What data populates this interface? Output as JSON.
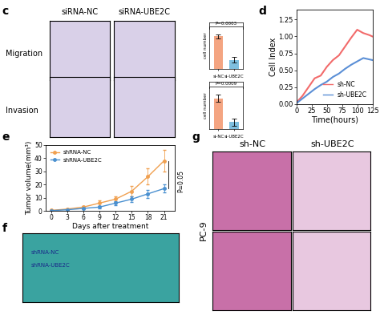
{
  "chart_data": [
    {
      "type": "bar",
      "ylabel": "cell number",
      "categories": [
        "si-NC",
        "si-UBE2C"
      ],
      "values": [
        140,
        40
      ],
      "errors": [
        8,
        12
      ],
      "colors": [
        "#f4a582",
        "#7fbfdf"
      ],
      "ylim": [
        0,
        200
      ],
      "tick_labels": "x",
      "annotation": "P=0.0003"
    },
    {
      "type": "bar",
      "ylabel": "cell number",
      "categories": [
        "si-NC",
        "si-UBE2C"
      ],
      "values": [
        130,
        30
      ],
      "errors": [
        15,
        15
      ],
      "colors": [
        "#f4a582",
        "#7fbfdf"
      ],
      "ylim": [
        0,
        200
      ],
      "tick_labels": "x",
      "annotation": "P=0.0009"
    },
    {
      "type": "line",
      "xlabel": "Time(hours)",
      "ylabel": "Cell Index",
      "x": [
        0,
        10,
        20,
        30,
        40,
        50,
        60,
        70,
        80,
        90,
        100,
        110,
        120,
        125
      ],
      "series": [
        {
          "name": "sh-NC",
          "color": "#f26b6b",
          "values": [
            0.02,
            0.12,
            0.25,
            0.38,
            0.42,
            0.55,
            0.65,
            0.72,
            0.85,
            0.98,
            1.1,
            1.05,
            1.02,
            1.0
          ]
        },
        {
          "name": "sh-UBE2C",
          "color": "#5b8fd6",
          "values": [
            0.01,
            0.08,
            0.15,
            0.22,
            0.28,
            0.33,
            0.4,
            0.45,
            0.52,
            0.58,
            0.63,
            0.68,
            0.66,
            0.65
          ]
        }
      ],
      "xlim": [
        0,
        125
      ],
      "xticks": [
        0,
        25,
        50,
        75,
        100,
        125
      ],
      "ylim": [
        0,
        1.4
      ],
      "yticks": [
        {
          "value": 0,
          "label": "0.00"
        },
        {
          "value": 0.25,
          "label": "0.25"
        },
        {
          "value": 0.5,
          "label": "0.50"
        },
        {
          "value": 0.75,
          "label": "0.75"
        },
        {
          "value": 1.0,
          "label": "1.00"
        },
        {
          "value": 1.25,
          "label": "1.25"
        }
      ],
      "legend": "lower right"
    },
    {
      "type": "line",
      "xlabel": "Days after treatment",
      "ylabel": "Tumor volume(mm³)",
      "x": [
        0,
        3,
        6,
        9,
        12,
        15,
        18,
        21
      ],
      "series": [
        {
          "name": "shRNA-NC",
          "color": "#f0a050",
          "marker": "o",
          "values": [
            0.5,
            1.5,
            3,
            6,
            9,
            15,
            26,
            38
          ],
          "errors": [
            0.3,
            0.5,
            1,
            2,
            2,
            4,
            6,
            8
          ]
        },
        {
          "name": "shRNA-UBE2C",
          "color": "#4a90d0",
          "marker": "o",
          "values": [
            0.3,
            1,
            2,
            3,
            6,
            9,
            13,
            17
          ],
          "errors": [
            0.2,
            0.3,
            0.8,
            1,
            1.5,
            2,
            3,
            3
          ]
        }
      ],
      "xlim": [
        -1,
        23
      ],
      "xticks": [
        0,
        3,
        6,
        9,
        12,
        15,
        18,
        21
      ],
      "ylim": [
        0,
        50
      ],
      "yticks": [
        0,
        10,
        20,
        30,
        40,
        50
      ],
      "legend": "upper left",
      "annotation": "P=0.05"
    }
  ],
  "figure": {
    "panel_labels": [
      "c",
      "d",
      "e",
      "f",
      "g"
    ],
    "transwell": {
      "columns": [
        "siRNA-NC",
        "siRNA-UBE2C"
      ],
      "rows": [
        "Migration",
        "Invasion"
      ]
    },
    "photo": {
      "labels": [
        "shRNA-NC",
        "shRNA-UBE2C"
      ]
    },
    "histology": {
      "columns": [
        "sh-NC",
        "sh-UBE2C"
      ],
      "row_label": "PC-9"
    }
  }
}
